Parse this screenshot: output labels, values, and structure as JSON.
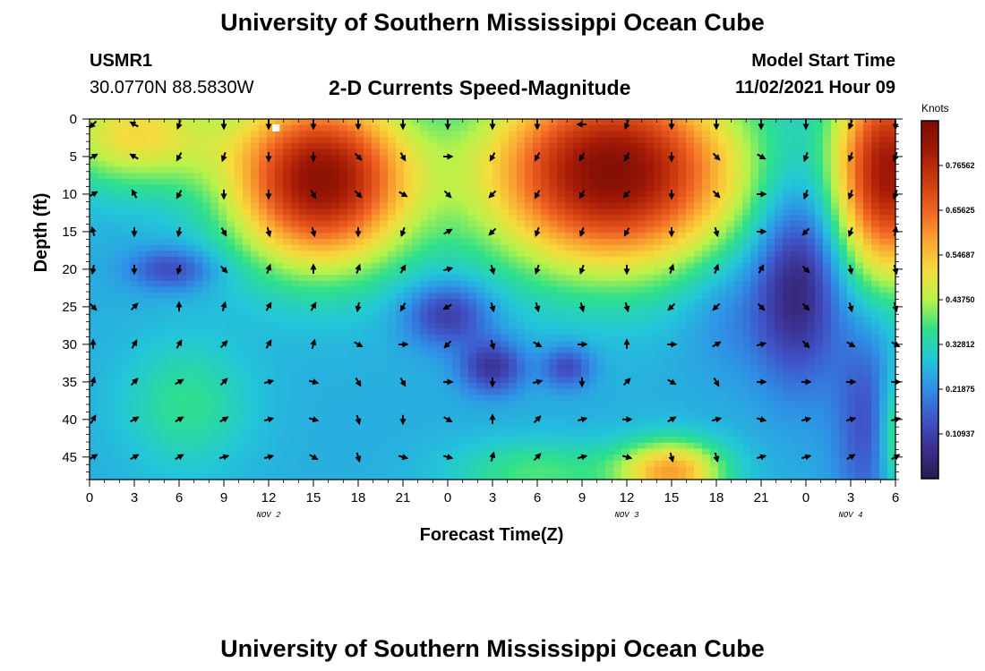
{
  "header": {
    "title": "University of Southern Mississippi Ocean Cube",
    "station": "USMR1",
    "coords": "30.0770N  88.5830W",
    "subtitle": "2-D Currents Speed-Magnitude",
    "start_label": "Model Start Time",
    "start_value": "11/02/2021 Hour 09"
  },
  "footer": {
    "title": "University of Southern Mississippi Ocean Cube"
  },
  "chart_data": {
    "type": "heatmap",
    "title": "2-D Currents Speed-Magnitude",
    "xlabel": "Forecast Time(Z)",
    "ylabel": "Depth (ft)",
    "x_ticks": [
      "0",
      "3",
      "6",
      "9",
      "12",
      "15",
      "18",
      "21",
      "0",
      "3",
      "6",
      "9",
      "12",
      "15",
      "18",
      "21",
      "0",
      "3",
      "6"
    ],
    "date_labels": [
      {
        "text": "NOV 2",
        "x_hours": 12
      },
      {
        "text": "NOV 3",
        "x_hours": 36
      },
      {
        "text": "NOV 4",
        "x_hours": 51
      }
    ],
    "x_range_hours": [
      0,
      54
    ],
    "y_ticks": [
      0,
      5,
      10,
      15,
      20,
      25,
      30,
      35,
      40,
      45
    ],
    "ylim": [
      0,
      48
    ],
    "y_inverted": true,
    "colorbar": {
      "unit": "Knots",
      "range": [
        0,
        0.875
      ],
      "tick_values": [
        0.10937,
        0.21875,
        0.32812,
        0.4375,
        0.54687,
        0.65625,
        0.76562
      ],
      "tick_labels": [
        "0.10937",
        "0.21875",
        "0.32812",
        "0.43750",
        "0.54687",
        "0.65625",
        "0.76562"
      ]
    },
    "arrow_times_hours": [
      0,
      3,
      6,
      9,
      12,
      15,
      18,
      21,
      24,
      27,
      30,
      33,
      36,
      39,
      42,
      45,
      48,
      51,
      54
    ],
    "arrow_depths_ft": [
      0,
      5,
      10,
      15,
      20,
      25,
      30,
      35,
      40,
      45
    ],
    "arrow_directions_deg": [
      [
        225,
        300,
        200,
        180,
        180,
        180,
        180,
        180,
        180,
        180,
        180,
        270,
        200,
        180,
        180,
        180,
        180,
        200,
        180
      ],
      [
        60,
        300,
        210,
        200,
        180,
        180,
        135,
        150,
        90,
        210,
        210,
        210,
        210,
        180,
        135,
        120,
        200,
        200,
        200
      ],
      [
        60,
        330,
        210,
        180,
        180,
        150,
        135,
        120,
        135,
        225,
        210,
        210,
        225,
        180,
        135,
        90,
        200,
        200,
        200
      ],
      [
        345,
        180,
        190,
        150,
        165,
        165,
        180,
        200,
        60,
        225,
        200,
        200,
        210,
        180,
        165,
        90,
        225,
        200,
        10
      ],
      [
        190,
        180,
        195,
        135,
        20,
        0,
        20,
        30,
        75,
        165,
        200,
        200,
        180,
        20,
        20,
        30,
        135,
        170,
        165
      ],
      [
        135,
        45,
        0,
        15,
        30,
        30,
        190,
        210,
        240,
        165,
        165,
        165,
        165,
        225,
        225,
        135,
        135,
        165,
        165
      ],
      [
        0,
        30,
        30,
        45,
        30,
        15,
        120,
        90,
        225,
        165,
        120,
        90,
        0,
        90,
        60,
        75,
        135,
        120,
        120
      ],
      [
        15,
        45,
        60,
        45,
        75,
        105,
        150,
        150,
        90,
        180,
        75,
        180,
        45,
        120,
        150,
        90,
        90,
        90,
        90
      ],
      [
        30,
        60,
        60,
        60,
        75,
        105,
        165,
        180,
        120,
        0,
        45,
        75,
        90,
        60,
        75,
        105,
        75,
        75,
        75
      ],
      [
        60,
        60,
        60,
        75,
        75,
        120,
        165,
        105,
        105,
        15,
        45,
        75,
        105,
        165,
        165,
        75,
        75,
        60,
        60
      ]
    ],
    "speed_grid_note": "Heatmap: current speed magnitude (knots) vs forecast hour and depth; high (>0.6) near-surface bands at ~10-21h and ~27-42h and 50-54h, lows (<0.1) near 24-30h at 25-35ft and 46-48h at 15-30ft.",
    "colors": {
      "scale": [
        "#2b1a4a",
        "#3b2f8f",
        "#3f55c9",
        "#2f8fe6",
        "#23c6d9",
        "#2fe08a",
        "#b8f24a",
        "#f6dc3c",
        "#f9a431",
        "#ef6223",
        "#cc3a0f",
        "#a31906",
        "#7a0d04"
      ],
      "start_marker": "#ffffff"
    },
    "start_marker_hour": 12.5
  }
}
